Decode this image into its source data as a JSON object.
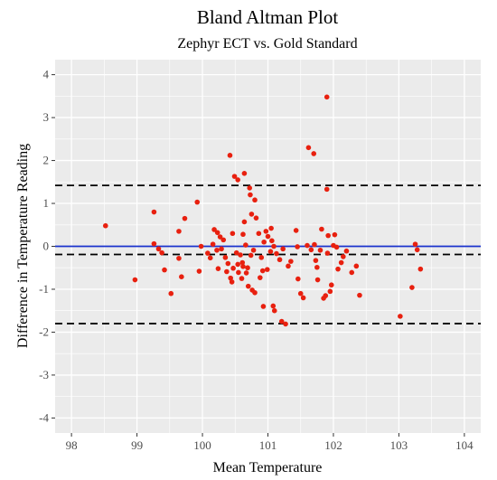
{
  "chart_data": {
    "type": "scatter",
    "title": "Bland Altman Plot",
    "subtitle": "Zephyr ECT vs. Gold Standard",
    "xlabel": "Mean Temperature",
    "ylabel": "Difference in Temperature Reading",
    "xlim": [
      97.75,
      104.25
    ],
    "ylim": [
      -4.35,
      4.35
    ],
    "x_ticks": [
      98,
      99,
      100,
      101,
      102,
      103,
      104
    ],
    "y_ticks": [
      -4,
      -3,
      -2,
      -1,
      0,
      1,
      2,
      3,
      4
    ],
    "x_tick_labels": [
      "98",
      "99",
      "100",
      "101",
      "102",
      "103",
      "104"
    ],
    "y_tick_labels": [
      "-4",
      "-3",
      "-2",
      "-1",
      "0",
      "1",
      "2",
      "3",
      "4"
    ],
    "grid": true,
    "colors": {
      "background": "#ebebeb",
      "grid": "#ffffff",
      "points": "#e8200f",
      "zero_line": "#1a33cc",
      "limit_lines": "#000000"
    },
    "reference_lines": [
      {
        "y": 0,
        "style": "solid",
        "color": "#1a33cc"
      },
      {
        "y": 1.42,
        "style": "dashed",
        "color": "#000000"
      },
      {
        "y": -0.19,
        "style": "dashed",
        "color": "#000000"
      },
      {
        "y": -1.8,
        "style": "dashed",
        "color": "#000000"
      }
    ],
    "series": [
      {
        "points": [
          [
            98.52,
            0.48
          ],
          [
            98.97,
            -0.78
          ],
          [
            99.26,
            0.8
          ],
          [
            99.26,
            0.06
          ],
          [
            99.33,
            -0.06
          ],
          [
            99.38,
            -0.15
          ],
          [
            99.42,
            -0.55
          ],
          [
            99.52,
            -1.1
          ],
          [
            99.64,
            -0.28
          ],
          [
            99.64,
            0.35
          ],
          [
            99.68,
            -0.71
          ],
          [
            99.73,
            0.65
          ],
          [
            99.92,
            1.03
          ],
          [
            99.95,
            -0.58
          ],
          [
            99.98,
            0.0
          ],
          [
            100.08,
            -0.16
          ],
          [
            100.12,
            -0.27
          ],
          [
            100.16,
            0.05
          ],
          [
            100.18,
            0.39
          ],
          [
            100.23,
            0.32
          ],
          [
            100.22,
            -0.09
          ],
          [
            100.24,
            -0.52
          ],
          [
            100.27,
            0.22
          ],
          [
            100.29,
            -0.06
          ],
          [
            100.32,
            0.15
          ],
          [
            100.35,
            -0.26
          ],
          [
            100.37,
            -0.59
          ],
          [
            100.39,
            -0.4
          ],
          [
            100.42,
            2.12
          ],
          [
            100.46,
            0.3
          ],
          [
            100.43,
            -0.74
          ],
          [
            100.45,
            -0.83
          ],
          [
            100.47,
            -0.51
          ],
          [
            100.49,
            1.63
          ],
          [
            100.52,
            -0.15
          ],
          [
            100.54,
            1.55
          ],
          [
            100.54,
            -0.42
          ],
          [
            100.55,
            -0.61
          ],
          [
            100.58,
            -0.2
          ],
          [
            100.6,
            -0.75
          ],
          [
            100.61,
            -0.38
          ],
          [
            100.62,
            0.28
          ],
          [
            100.62,
            -0.47
          ],
          [
            100.64,
            1.7
          ],
          [
            100.64,
            0.57
          ],
          [
            100.66,
            0.03
          ],
          [
            100.67,
            -0.62
          ],
          [
            100.69,
            -0.5
          ],
          [
            100.7,
            -0.93
          ],
          [
            100.72,
            1.36
          ],
          [
            100.73,
            1.2
          ],
          [
            100.74,
            -0.21
          ],
          [
            100.75,
            0.75
          ],
          [
            100.76,
            -1.02
          ],
          [
            100.78,
            -0.09
          ],
          [
            100.8,
            1.08
          ],
          [
            100.8,
            -1.08
          ],
          [
            100.82,
            0.66
          ],
          [
            100.86,
            0.3
          ],
          [
            100.88,
            -0.73
          ],
          [
            100.9,
            -0.26
          ],
          [
            100.92,
            -0.57
          ],
          [
            100.93,
            -1.4
          ],
          [
            100.94,
            0.1
          ],
          [
            100.97,
            0.35
          ],
          [
            100.99,
            -0.54
          ],
          [
            101.0,
            0.23
          ],
          [
            101.04,
            -0.12
          ],
          [
            101.05,
            0.42
          ],
          [
            101.06,
            0.13
          ],
          [
            101.08,
            -1.39
          ],
          [
            101.09,
            0.0
          ],
          [
            101.1,
            -1.5
          ],
          [
            101.13,
            -0.17
          ],
          [
            101.18,
            -0.31
          ],
          [
            101.21,
            -1.75
          ],
          [
            101.23,
            -0.06
          ],
          [
            101.27,
            -1.81
          ],
          [
            101.31,
            -0.46
          ],
          [
            101.35,
            -0.35
          ],
          [
            101.43,
            0.37
          ],
          [
            101.45,
            -0.01
          ],
          [
            101.46,
            -0.76
          ],
          [
            101.5,
            -1.1
          ],
          [
            101.54,
            -1.2
          ],
          [
            101.6,
            0.02
          ],
          [
            101.62,
            2.3
          ],
          [
            101.66,
            -0.08
          ],
          [
            101.7,
            2.16
          ],
          [
            101.71,
            0.04
          ],
          [
            101.73,
            -0.33
          ],
          [
            101.75,
            -0.49
          ],
          [
            101.76,
            -0.78
          ],
          [
            101.8,
            -0.09
          ],
          [
            101.82,
            0.4
          ],
          [
            101.85,
            -1.21
          ],
          [
            101.88,
            -1.15
          ],
          [
            101.9,
            3.48
          ],
          [
            101.9,
            1.33
          ],
          [
            101.91,
            -0.16
          ],
          [
            101.92,
            0.25
          ],
          [
            101.95,
            -1.05
          ],
          [
            101.97,
            -0.9
          ],
          [
            102.0,
            0.02
          ],
          [
            102.02,
            0.27
          ],
          [
            102.05,
            -0.02
          ],
          [
            102.07,
            -0.53
          ],
          [
            102.12,
            -0.38
          ],
          [
            102.15,
            -0.24
          ],
          [
            102.2,
            -0.11
          ],
          [
            102.28,
            -0.61
          ],
          [
            102.35,
            -0.46
          ],
          [
            102.4,
            -1.14
          ],
          [
            103.02,
            -1.63
          ],
          [
            103.2,
            -0.96
          ],
          [
            103.25,
            0.05
          ],
          [
            103.28,
            -0.08
          ],
          [
            103.33,
            -0.53
          ]
        ]
      }
    ]
  }
}
